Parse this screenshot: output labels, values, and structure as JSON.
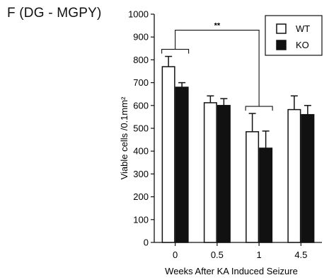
{
  "panel_label": "F (DG - MGPY)",
  "colors": {
    "wt_fill": "#ffffff",
    "ko_fill": "#111111",
    "stroke": "#111111"
  },
  "chart_data": {
    "type": "bar",
    "categories": [
      "0",
      "0.5",
      "1",
      "4.5"
    ],
    "series": [
      {
        "name": "WT",
        "values": [
          770,
          612,
          485,
          582
        ],
        "errors": [
          45,
          30,
          80,
          60
        ]
      },
      {
        "name": "KO",
        "values": [
          680,
          600,
          413,
          560
        ],
        "errors": [
          20,
          30,
          75,
          40
        ]
      }
    ],
    "xlabel": "Weeks After KA Induced Seizure",
    "ylabel": "Viable cells /0.1mm²",
    "ylim": [
      0,
      1000
    ],
    "yticks": [
      "0",
      "100",
      "200",
      "300",
      "400",
      "500",
      "600",
      "700",
      "800",
      "900",
      "1000"
    ],
    "legend_position": "top-right",
    "significance": "**",
    "grid": false
  }
}
